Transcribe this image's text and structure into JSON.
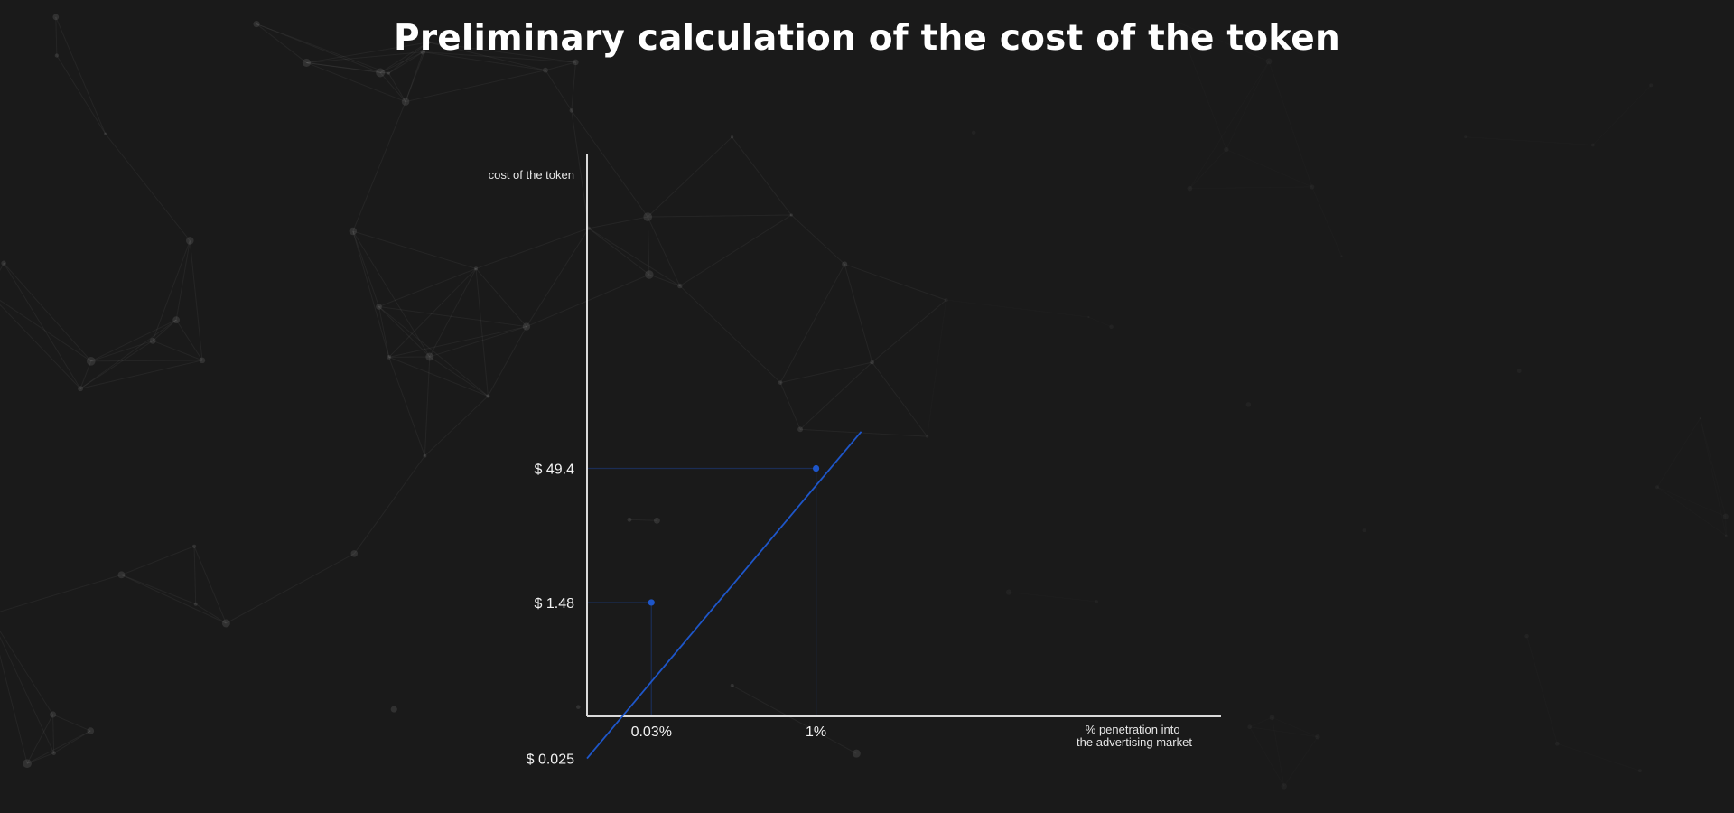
{
  "page": {
    "title": "Preliminary calculation of the cost of the token"
  },
  "colors": {
    "background": "#1a1a1a",
    "axis": "#d9d9d9",
    "series": "#1e56c9",
    "guide": "#1b2d55",
    "text": "#ffffff"
  },
  "chart_data": {
    "type": "line",
    "title": "",
    "ylabel": "cost of the token",
    "xlabel_lines": [
      "% penetration into",
      "the advertising market"
    ],
    "x_scale": "categorical-log",
    "y_scale": "log",
    "x_ticks": [
      "0.03%",
      "1%"
    ],
    "y_ticks": [
      "$ 0.025",
      "$ 1.48",
      "$ 49.4"
    ],
    "series": [
      {
        "points": [
          {
            "x_label": "0.03%",
            "x": 0.03,
            "y": 1.48
          },
          {
            "x_label": "1%",
            "x": 1,
            "y": 49.4
          }
        ],
        "extends_to_y_axis_at": 0.025
      }
    ],
    "guides": "dashed-style thin lines from each point to both axes",
    "grid": false,
    "legend": "none"
  }
}
